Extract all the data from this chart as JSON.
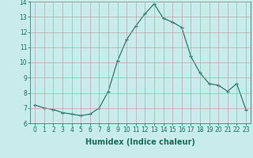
{
  "x": [
    0,
    1,
    2,
    3,
    4,
    5,
    6,
    7,
    8,
    9,
    10,
    11,
    12,
    13,
    14,
    15,
    16,
    17,
    18,
    19,
    20,
    21,
    22,
    23
  ],
  "y": [
    7.2,
    7.0,
    6.9,
    6.7,
    6.6,
    6.5,
    6.6,
    7.0,
    8.1,
    10.1,
    11.5,
    12.4,
    13.2,
    13.85,
    12.9,
    12.65,
    12.3,
    10.4,
    9.3,
    8.6,
    8.5,
    8.1,
    8.6,
    6.9
  ],
  "xlabel": "Humidex (Indice chaleur)",
  "ylabel": "",
  "ylim": [
    6,
    14
  ],
  "xlim": [
    -0.5,
    23.5
  ],
  "yticks": [
    6,
    7,
    8,
    9,
    10,
    11,
    12,
    13,
    14
  ],
  "xticks": [
    0,
    1,
    2,
    3,
    4,
    5,
    6,
    7,
    8,
    9,
    10,
    11,
    12,
    13,
    14,
    15,
    16,
    17,
    18,
    19,
    20,
    21,
    22,
    23
  ],
  "line_color": "#1a6b5a",
  "marker": "+",
  "bg_color": "#c8ecec",
  "grid_color": "#b8a8a8",
  "tick_label_color": "#1a6b5a",
  "xlabel_fontsize": 7,
  "tick_fontsize": 5.5
}
